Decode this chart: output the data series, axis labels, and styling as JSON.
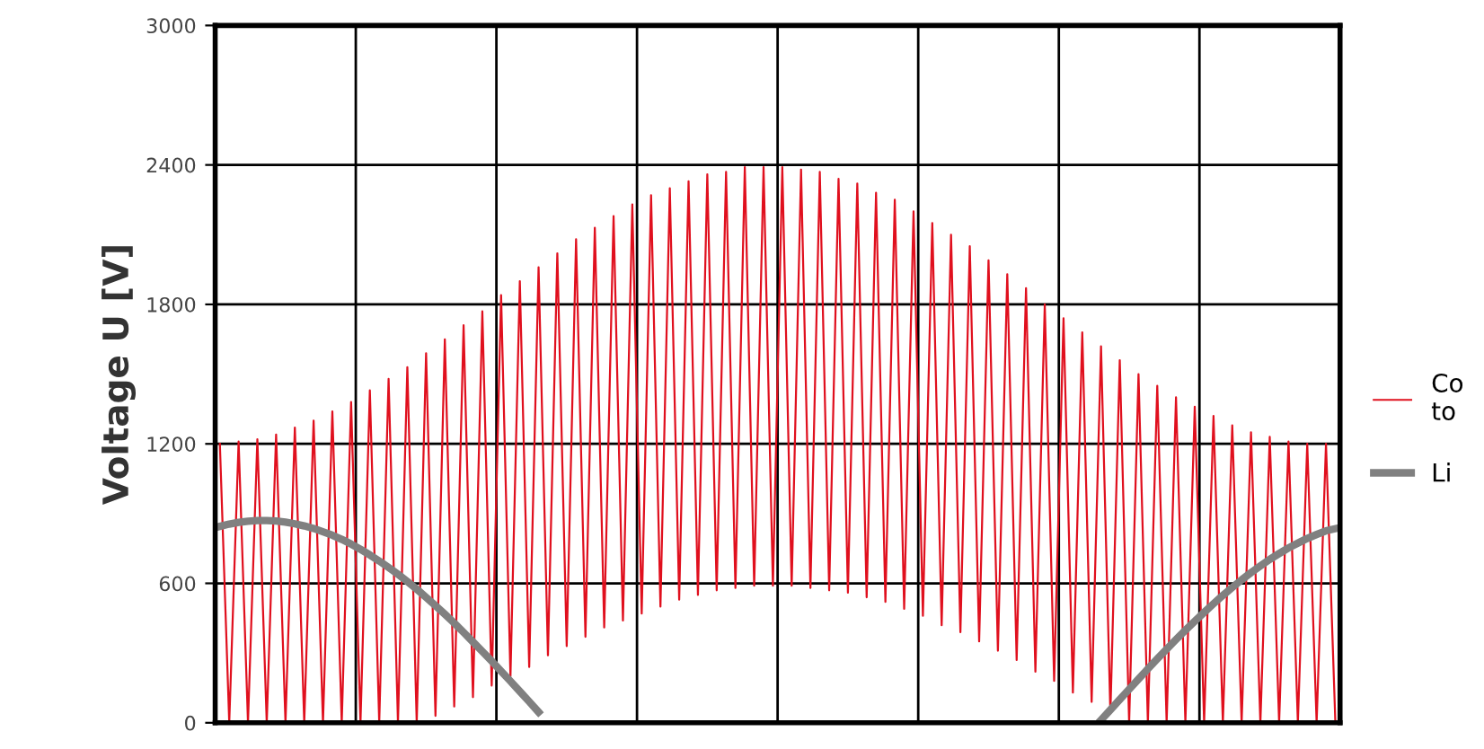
{
  "chart_data": {
    "type": "line",
    "ylabel": "Voltage U [V]",
    "categories": [
      null,
      null,
      null,
      null,
      null,
      null,
      null,
      null,
      null,
      null,
      null,
      null,
      null,
      null,
      null,
      null,
      null,
      null,
      null,
      null,
      null,
      null,
      null,
      null,
      null,
      null,
      null,
      null,
      null,
      null,
      null,
      null,
      null,
      null,
      null,
      null,
      null,
      null,
      null,
      null,
      null,
      null,
      null,
      null,
      null,
      null,
      null,
      null,
      null,
      null,
      null,
      null,
      null,
      null,
      null,
      null,
      null,
      null,
      null,
      null,
      null,
      null,
      null,
      null,
      null,
      null,
      null,
      null,
      null,
      null,
      null,
      null,
      null,
      null,
      null,
      null,
      null,
      null,
      null,
      null,
      null,
      null,
      null,
      null,
      null,
      null,
      null,
      null,
      null,
      null,
      null,
      null,
      null,
      null,
      null,
      null,
      null,
      null,
      null,
      null,
      null,
      null,
      null,
      null,
      null,
      null,
      null,
      null,
      null,
      null,
      null,
      null,
      null,
      null,
      null,
      null,
      null,
      null,
      null,
      null
    ],
    "ylim": [
      0,
      3000
    ],
    "yticks": [
      0,
      600,
      1200,
      1800,
      2400,
      3000
    ],
    "grid": true,
    "legend": "right",
    "series": [
      {
        "name": "Co\nto",
        "color": "#e0101e",
        "values": [
          1200,
          0,
          1210,
          0,
          1220,
          0,
          1240,
          0,
          1270,
          0,
          1300,
          0,
          1340,
          0,
          1380,
          0,
          1430,
          0,
          1480,
          0,
          1530,
          0,
          1590,
          30,
          1650,
          70,
          1710,
          110,
          1770,
          160,
          1840,
          200,
          1900,
          240,
          1960,
          290,
          2020,
          330,
          2080,
          370,
          2130,
          410,
          2180,
          440,
          2230,
          470,
          2270,
          500,
          2300,
          530,
          2330,
          550,
          2360,
          570,
          2370,
          580,
          2390,
          590,
          2390,
          590,
          2390,
          590,
          2380,
          580,
          2370,
          570,
          2340,
          560,
          2320,
          540,
          2280,
          520,
          2250,
          490,
          2200,
          460,
          2150,
          420,
          2100,
          390,
          2050,
          350,
          1990,
          310,
          1930,
          270,
          1870,
          220,
          1800,
          180,
          1740,
          130,
          1680,
          90,
          1620,
          40,
          1560,
          0,
          1500,
          0,
          1450,
          0,
          1400,
          0,
          1360,
          0,
          1320,
          0,
          1280,
          0,
          1250,
          0,
          1230,
          0,
          1210,
          0,
          1200,
          0,
          1200,
          0
        ]
      },
      {
        "name": "Li",
        "color": "#808080",
        "values": [
          845,
          855,
          862,
          867,
          870,
          870,
          868,
          863,
          856,
          847,
          836,
          822,
          807,
          789,
          769,
          746,
          722,
          696,
          668,
          639,
          608,
          575,
          540,
          504,
          467,
          429,
          389,
          348,
          307,
          265,
          222,
          179,
          135,
          91,
          46,
          null,
          null,
          null,
          null,
          null,
          null,
          null,
          null,
          null,
          null,
          null,
          null,
          null,
          null,
          null,
          null,
          null,
          null,
          null,
          null,
          null,
          null,
          null,
          null,
          null,
          null,
          null,
          null,
          null,
          null,
          null,
          null,
          null,
          null,
          null,
          null,
          null,
          null,
          null,
          null,
          null,
          null,
          null,
          null,
          null,
          null,
          null,
          null,
          null,
          null,
          null,
          null,
          null,
          null,
          null,
          null,
          null,
          null,
          null,
          12,
          56,
          100,
          144,
          188,
          232,
          275,
          317,
          358,
          398,
          437,
          475,
          512,
          548,
          582,
          615,
          646,
          675,
          703,
          728,
          752,
          773,
          793,
          810,
          826,
          835
        ]
      }
    ]
  }
}
